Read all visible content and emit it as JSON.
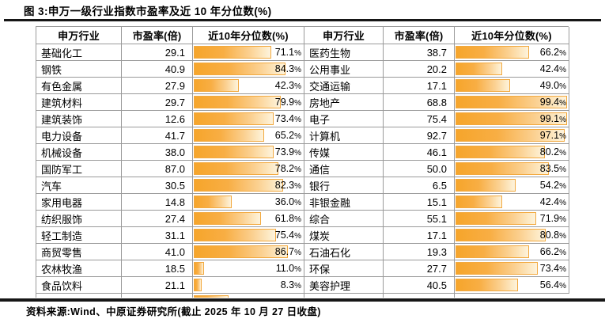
{
  "figure": {
    "title": "图 3:申万一级行业指数市盈率及近 10 年分位数(%)",
    "source": "资料来源:Wind、中原证券研究所(截止 2025 年 10 月 27 日收盘)"
  },
  "ui": {
    "headers": [
      "申万行业",
      "市盈率(倍)",
      "近10年分位数(%)",
      "申万行业",
      "市盈率(倍)",
      "近10年分位数(%)"
    ]
  },
  "colors": {
    "bar_left": "#f6a52b",
    "bar_right": "#fdf3dd",
    "bar_border": "#f2a93f",
    "grid": "#9a9a9a",
    "rule": "#161616"
  },
  "chart_data": {
    "type": "table",
    "title": "申万一级行业指数市盈率及近 10 年分位数(%)",
    "columns": [
      "申万行业",
      "市盈率(倍)",
      "近10年分位数(%)"
    ],
    "layout": "two side-by-side panels, rows 1-15 left panel, rows 16-30 right panel",
    "bar_style": "orange gradient data bar in percentile column, bar length = percentile value on 0-100 scale",
    "value_range": [
      0,
      100
    ],
    "rows": [
      [
        "基础化工",
        29.1,
        71.1
      ],
      [
        "钢铁",
        40.9,
        84.3
      ],
      [
        "有色金属",
        27.9,
        42.3
      ],
      [
        "建筑材料",
        29.7,
        79.9
      ],
      [
        "建筑装饰",
        12.6,
        73.4
      ],
      [
        "电力设备",
        41.7,
        65.2
      ],
      [
        "机械设备",
        38.0,
        73.9
      ],
      [
        "国防军工",
        87.0,
        78.2
      ],
      [
        "汽车",
        30.5,
        82.3
      ],
      [
        "家用电器",
        14.8,
        36.0
      ],
      [
        "纺织服饰",
        27.4,
        61.8
      ],
      [
        "轻工制造",
        31.1,
        75.4
      ],
      [
        "商贸零售",
        41.0,
        86.7
      ],
      [
        "农林牧渔",
        18.5,
        11.0
      ],
      [
        "食品饮料",
        21.1,
        8.3
      ],
      [
        "医药生物",
        38.7,
        66.2
      ],
      [
        "公用事业",
        20.2,
        42.4
      ],
      [
        "交通运输",
        17.1,
        49.0
      ],
      [
        "房地产",
        68.8,
        99.4
      ],
      [
        "电子",
        75.4,
        99.1
      ],
      [
        "计算机",
        92.7,
        97.1
      ],
      [
        "传媒",
        46.1,
        80.2
      ],
      [
        "通信",
        50.0,
        83.5
      ],
      [
        "银行",
        6.5,
        54.2
      ],
      [
        "非银金融",
        15.1,
        42.4
      ],
      [
        "综合",
        55.1,
        71.9
      ],
      [
        "煤炭",
        17.1,
        80.8
      ],
      [
        "石油石化",
        19.3,
        66.2
      ],
      [
        "环保",
        27.7,
        73.4
      ],
      [
        "美容护理",
        40.5,
        56.4
      ]
    ],
    "clipped_row_visible": true,
    "clipped_row_bar_pct": 33
  }
}
